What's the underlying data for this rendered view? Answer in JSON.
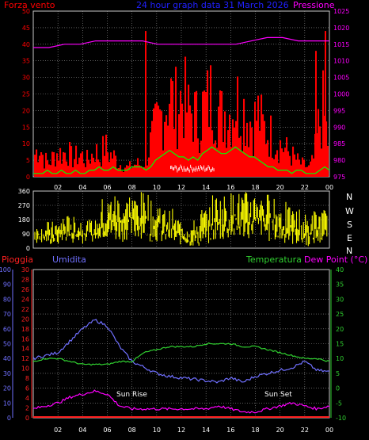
{
  "header": {
    "title": "24 hour graph data  31 March 2026",
    "left_label": "Forza vento",
    "right_label": "Pressione"
  },
  "colors": {
    "wind": "#ff0000",
    "gust": "#00ff00",
    "pressure": "#ff00ff",
    "direction": "#ffff00",
    "humidity": "#7070ff",
    "temperature": "#30d030",
    "dewpoint": "#ff00ff",
    "rain": "#ff2020",
    "grid": "#9a9a9a",
    "title": "#2020ff"
  },
  "compass": [
    "N",
    "W",
    "S",
    "E",
    "N"
  ],
  "bottom_labels": {
    "rain": "Pioggia",
    "humidity": "Umidita",
    "temperature": "Temperatura",
    "dewpoint": "Dew Point (°C)",
    "sunrise": "Sun Rise",
    "sunset": "Sun Set"
  },
  "chart_data": [
    {
      "type": "bar",
      "name": "wind-panel",
      "x_ticks": [
        "02",
        "04",
        "06",
        "08",
        "10",
        "12",
        "14",
        "16",
        "18",
        "20",
        "22",
        "00"
      ],
      "y_left": {
        "ticks": [
          0,
          5,
          10,
          15,
          20,
          25,
          30,
          35,
          40,
          45,
          50
        ],
        "range": [
          0,
          50
        ]
      },
      "y_right": {
        "ticks": [
          975,
          980,
          985,
          990,
          995,
          1000,
          1005,
          1010,
          1015,
          1020,
          1025
        ],
        "range": [
          975,
          1025
        ]
      },
      "wind_envelope": [
        10,
        14,
        8,
        6,
        9,
        11,
        10,
        12,
        8,
        9,
        10,
        7,
        9,
        12,
        8,
        14,
        10,
        9,
        6,
        5,
        4,
        5,
        6,
        5,
        8,
        16,
        22,
        26,
        32,
        38,
        30,
        34,
        36,
        28,
        30,
        24,
        30,
        32,
        36,
        34,
        26,
        30,
        28,
        34,
        32,
        30,
        26,
        24,
        28,
        22,
        20,
        18,
        16,
        14,
        12,
        10,
        8,
        6,
        5,
        4,
        8,
        22,
        30,
        16
      ],
      "gust": [
        1,
        1,
        1,
        2,
        1,
        1,
        2,
        1,
        1,
        2,
        1,
        1,
        2,
        2,
        3,
        2,
        2,
        3,
        2,
        2,
        2,
        3,
        3,
        3,
        2,
        3,
        5,
        6,
        7,
        8,
        7,
        6,
        6,
        5,
        6,
        5,
        7,
        8,
        9,
        8,
        7,
        7,
        8,
        9,
        8,
        7,
        6,
        6,
        5,
        4,
        3,
        3,
        2,
        2,
        2,
        1,
        2,
        2,
        1,
        1,
        1,
        2,
        3,
        2
      ],
      "pressure": [
        1014,
        1014,
        1015,
        1015,
        1016,
        1016,
        1016,
        1016,
        1015,
        1015,
        1015,
        1015,
        1015,
        1015,
        1016,
        1017,
        1017,
        1016,
        1016,
        1016
      ]
    },
    {
      "type": "line",
      "name": "direction-panel",
      "y_ticks": [
        0,
        90,
        180,
        270,
        360
      ],
      "range": [
        0,
        360
      ],
      "bands": [
        [
          30,
          150
        ],
        [
          20,
          170
        ],
        [
          40,
          210
        ],
        [
          30,
          200
        ],
        [
          40,
          180
        ],
        [
          60,
          320
        ],
        [
          40,
          360
        ],
        [
          50,
          350
        ],
        [
          60,
          360
        ],
        [
          40,
          300
        ],
        [
          30,
          250
        ],
        [
          20,
          200
        ],
        [
          10,
          180
        ],
        [
          20,
          260
        ],
        [
          40,
          350
        ],
        [
          50,
          360
        ],
        [
          60,
          360
        ],
        [
          70,
          360
        ],
        [
          40,
          350
        ],
        [
          30,
          300
        ],
        [
          20,
          260
        ],
        [
          10,
          220
        ],
        [
          20,
          250
        ],
        [
          40,
          330
        ]
      ]
    },
    {
      "type": "line",
      "name": "humidity-temp-panel",
      "y_humidity": {
        "ticks": [
          0,
          10,
          20,
          30,
          40,
          50,
          60,
          70,
          80,
          90,
          100
        ],
        "range": [
          0,
          100
        ]
      },
      "y_rain": {
        "ticks": [
          0,
          2,
          4,
          6,
          8,
          10,
          12,
          14,
          16,
          18,
          20,
          22,
          24,
          26,
          28,
          30
        ],
        "range": [
          0,
          30
        ]
      },
      "y_temp": {
        "ticks": [
          -10,
          -5,
          0,
          5,
          10,
          15,
          20,
          25,
          30,
          35,
          40
        ],
        "range": [
          -10,
          40
        ]
      },
      "x_ticks": [
        "02",
        "04",
        "06",
        "08",
        "10",
        "12",
        "14",
        "16",
        "18",
        "20",
        "22",
        "00"
      ],
      "humidity": [
        40,
        42,
        44,
        52,
        60,
        66,
        62,
        48,
        38,
        34,
        30,
        28,
        27,
        26,
        25,
        24,
        27,
        24,
        28,
        30,
        32,
        34,
        38,
        32,
        31
      ],
      "temperature": [
        9,
        10,
        10,
        9,
        8,
        8,
        8,
        9,
        9,
        12,
        13,
        14,
        14,
        14,
        15,
        15,
        15,
        14,
        14,
        13,
        12,
        11,
        10,
        10,
        9
      ],
      "dewpoint": [
        -7,
        -6,
        -5,
        -3,
        -2,
        -1,
        -2,
        -6,
        -7,
        -7,
        -7,
        -7,
        -7,
        -7,
        -7,
        -6,
        -7,
        -8,
        -8,
        -7,
        -6,
        -5,
        -6,
        -7,
        -6
      ],
      "rain": [
        0,
        0,
        0,
        0,
        0,
        0,
        0,
        0,
        0,
        0,
        0,
        0,
        0,
        0,
        0,
        0,
        0,
        0,
        0,
        0,
        0,
        0,
        0,
        0,
        0
      ]
    }
  ]
}
